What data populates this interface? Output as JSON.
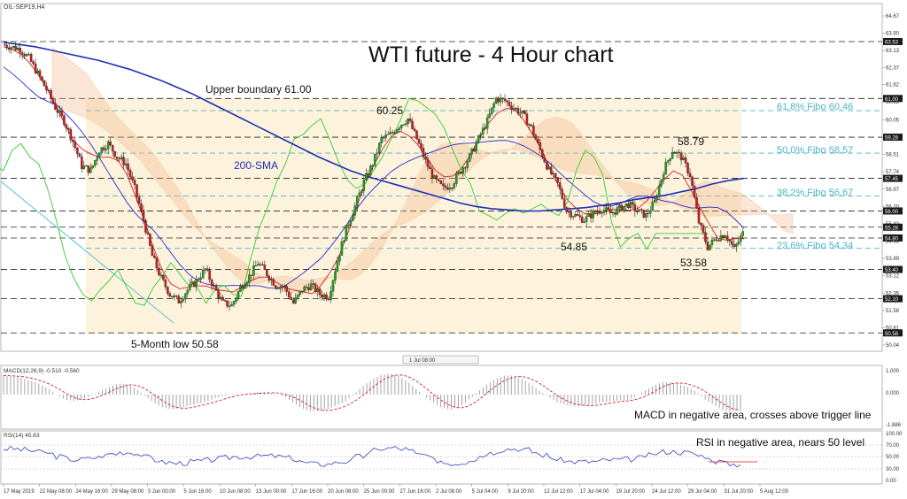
{
  "header": {
    "symbol": "OIL-SEP19,H4",
    "title": "WTI future - 4 Hour chart"
  },
  "colors": {
    "price_up": "#1aa31a",
    "price_down": "#cc1a1a",
    "sma": "#1f2fb5",
    "fibo": "#4fb3c8",
    "tenkan": "#d42020",
    "kijun": "#2a2ad0",
    "chikou": "#33cc33",
    "cloud": "#f2b48a",
    "band": "#fdf3dc",
    "macd_hist": "#9a9a9a",
    "macd_signal": "#d42020",
    "rsi": "#3040c0",
    "rsi_ma": "#e05050"
  },
  "chart_data": [
    {
      "type": "line",
      "name": "price",
      "title": "WTI future - 4 Hour chart",
      "ylim": [
        50.04,
        64.67
      ],
      "y_ticks": [
        "64.67",
        "63.90",
        "63.13",
        "62.37",
        "61.62",
        "60.85",
        "60.05",
        "59.28",
        "58.51",
        "57.74",
        "56.97",
        "56.20",
        "55.43",
        "54.66",
        "53.89",
        "53.12",
        "52.35",
        "51.58",
        "50.81",
        "50.04"
      ],
      "highlighted_levels": [
        "63.53",
        "61.00",
        "59.28",
        "57.45",
        "56.00",
        "55.28",
        "54.80",
        "53.40",
        "52.10",
        "50.58"
      ],
      "x_labels": [
        "17 May 2019",
        "22 May 08:00",
        "24 May 16:00",
        "29 May 08:00",
        "3 Jun 00:00",
        "5 Jun 16:00",
        "10 Jun 08:00",
        "13 Jun 00:00",
        "17 Jun 16:00",
        "20 Jun 08:00",
        "25 Jun 00:00",
        "27 Jun 16:00",
        "2 Jul 08:00",
        "5 Jul 04:00",
        "9 Jul 20:00",
        "12 Jul 12:00",
        "17 Jul 04:00",
        "19 Jul 20:00",
        "24 Jul 12:00",
        "29 Jul 04:00",
        "31 Jul 20:00",
        "5 Aug 12:00"
      ],
      "close": [
        63.4,
        63.3,
        63.2,
        62.8,
        62.1,
        61.4,
        60.6,
        60.0,
        59.1,
        58.0,
        57.8,
        58.7,
        59.0,
        58.4,
        58.1,
        57.0,
        55.6,
        54.0,
        53.0,
        52.3,
        52.0,
        52.5,
        52.9,
        53.4,
        52.6,
        51.9,
        51.8,
        52.6,
        53.1,
        53.7,
        53.2,
        52.7,
        52.6,
        51.9,
        52.5,
        52.7,
        52.3,
        52.2,
        53.8,
        55.2,
        56.2,
        57.3,
        58.1,
        59.2,
        59.4,
        59.8,
        60.1,
        59.2,
        58.2,
        57.4,
        57.0,
        57.2,
        57.8,
        58.4,
        59.2,
        60.0,
        61.0,
        60.9,
        60.6,
        60.3,
        59.7,
        58.7,
        57.8,
        57.2,
        56.0,
        55.8,
        55.6,
        55.9,
        56.1,
        55.9,
        56.1,
        56.3,
        56.0,
        55.8,
        56.4,
        57.8,
        58.7,
        58.4,
        57.6,
        55.5,
        54.4,
        54.8,
        55.0,
        54.3,
        55.0
      ],
      "sma_200": [
        63.5,
        63.4,
        63.3,
        63.15,
        63.0,
        62.85,
        62.7,
        62.5,
        62.3,
        62.05,
        61.8,
        61.5,
        61.2,
        60.85,
        60.5,
        60.15,
        59.8,
        59.45,
        59.1,
        58.75,
        58.4,
        58.1,
        57.8,
        57.55,
        57.35,
        57.15,
        56.95,
        56.75,
        56.55,
        56.35,
        56.2,
        56.1,
        56.05,
        56.0,
        56.0,
        56.05,
        56.1,
        56.15,
        56.25,
        56.35,
        56.5,
        56.6,
        56.7,
        56.85,
        57.0,
        57.2,
        57.35,
        57.45
      ],
      "fibonacci": [
        {
          "label": "61.8% Fibo 60.46",
          "value": 60.46
        },
        {
          "label": "50.0% Fibo 58.57",
          "value": 58.57
        },
        {
          "label": "38.2% Fibo 56.67",
          "value": 56.67
        },
        {
          "label": "23.6% Fibo 54.34",
          "value": 54.34
        }
      ],
      "annotations": [
        {
          "text": "Upper boundary 61.00"
        },
        {
          "text": "60.25"
        },
        {
          "text": "200-SMA"
        },
        {
          "text": "58.79"
        },
        {
          "text": "54.85"
        },
        {
          "text": "53.58"
        },
        {
          "text": "5-Month low 50.58"
        }
      ]
    },
    {
      "type": "bar",
      "name": "MACD",
      "header": "MACD(12,26,9) -0.510 -0.560",
      "ylim": [
        -1.886,
        1.0
      ],
      "y_ticks": [
        "1.000",
        "0.000",
        "-1.886"
      ],
      "annotation": "MACD in negative area, crosses above trigger line"
    },
    {
      "type": "line",
      "name": "RSI",
      "header": "RSI(14) 45.63",
      "ylim": [
        0,
        100
      ],
      "y_ticks": [
        "100.00",
        "70.00",
        "50.00",
        "30.00",
        "0.00"
      ],
      "annotation": "RSI in negative area, nears 50 level"
    }
  ],
  "ui": {
    "crosshair_label": "1 Jul 08:00"
  }
}
